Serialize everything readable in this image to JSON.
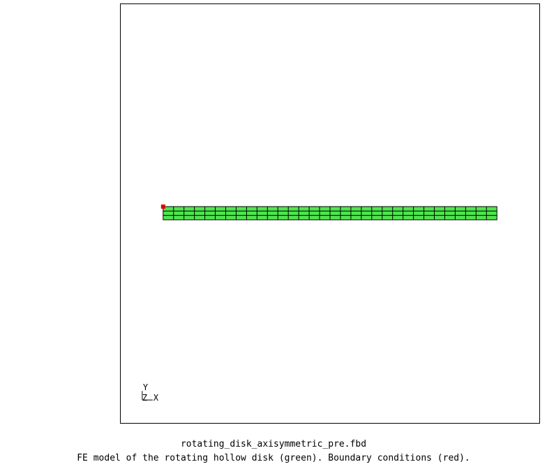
{
  "viewport": {
    "mesh_color": "#4ee44e",
    "mesh_line_color": "#000000",
    "bc_color": "#dd0000",
    "mesh_columns": 32,
    "mesh_rows": 3,
    "triad": {
      "y_label": "Y",
      "z_label": "Z",
      "x_label": "X"
    }
  },
  "caption": {
    "filename": "rotating_disk_axisymmetric_pre.fbd",
    "description": "FE model of the rotating hollow disk (green). Boundary conditions (red)."
  }
}
